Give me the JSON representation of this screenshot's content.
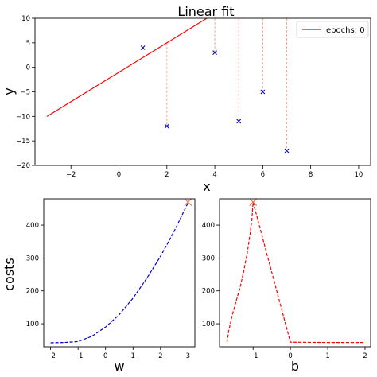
{
  "chart_data": [
    {
      "type": "line",
      "title": "Linear fit",
      "xlabel": "x",
      "ylabel": "y",
      "xlim": [
        -3.5,
        10.5
      ],
      "ylim": [
        -20,
        10
      ],
      "xticks": [
        -2,
        0,
        2,
        4,
        6,
        8,
        10
      ],
      "yticks": [
        -20,
        -15,
        -10,
        -5,
        0,
        5,
        10
      ],
      "grid": false,
      "legend_position": "top-right",
      "series": [
        {
          "name": "epochs: 0",
          "kind": "line",
          "color": "#ff0000",
          "x": [
            -3,
            3.8
          ],
          "y": [
            -10,
            10.4
          ]
        },
        {
          "kind": "scatter",
          "marker": "x",
          "color": "#0000cc",
          "x": [
            1,
            2,
            4,
            5,
            6,
            7
          ],
          "y": [
            4,
            -12,
            3,
            -11,
            -5,
            -17
          ]
        }
      ],
      "residual_lines": {
        "color": "#ff9999",
        "style": "dashed",
        "x": [
          2,
          4,
          5,
          6,
          7
        ]
      }
    },
    {
      "type": "line",
      "xlabel": "w",
      "ylabel": "costs",
      "xlim": [
        -2.25,
        3.25
      ],
      "ylim": [
        30,
        480
      ],
      "xticks": [
        -2,
        -1,
        0,
        1,
        2,
        3
      ],
      "yticks": [
        100,
        200,
        300,
        400
      ],
      "grid": false,
      "series": [
        {
          "kind": "line",
          "style": "dashed",
          "color": "#0000cc",
          "x": [
            -2,
            -1.5,
            -1,
            -0.5,
            0,
            0.5,
            1,
            1.5,
            2,
            2.5,
            3
          ],
          "y": [
            42,
            43,
            46,
            62,
            90,
            128,
            178,
            238,
            305,
            382,
            468
          ]
        }
      ],
      "marker": {
        "symbol": "x",
        "color": "#e8734a",
        "x": 3,
        "y": 470
      }
    },
    {
      "type": "line",
      "xlabel": "b",
      "xlim": [
        -1.9,
        2.15
      ],
      "ylim": [
        30,
        480
      ],
      "xticks": [
        -1,
        0,
        1,
        2
      ],
      "yticks": [
        100,
        200,
        300,
        400
      ],
      "grid": false,
      "series": [
        {
          "kind": "line",
          "style": "dashed",
          "color": "#ff0000",
          "x": [
            -1.7,
            -1.65,
            -1.55,
            -1.45,
            -1.35,
            -1.25,
            -1.15,
            -1.08,
            -1.03,
            -1.0,
            0,
            1,
            2
          ],
          "y": [
            43,
            80,
            130,
            170,
            210,
            260,
            320,
            375,
            420,
            470,
            44,
            43,
            43
          ]
        }
      ],
      "marker": {
        "symbol": "x",
        "color": "#e8734a",
        "x": -1,
        "y": 470
      }
    }
  ]
}
